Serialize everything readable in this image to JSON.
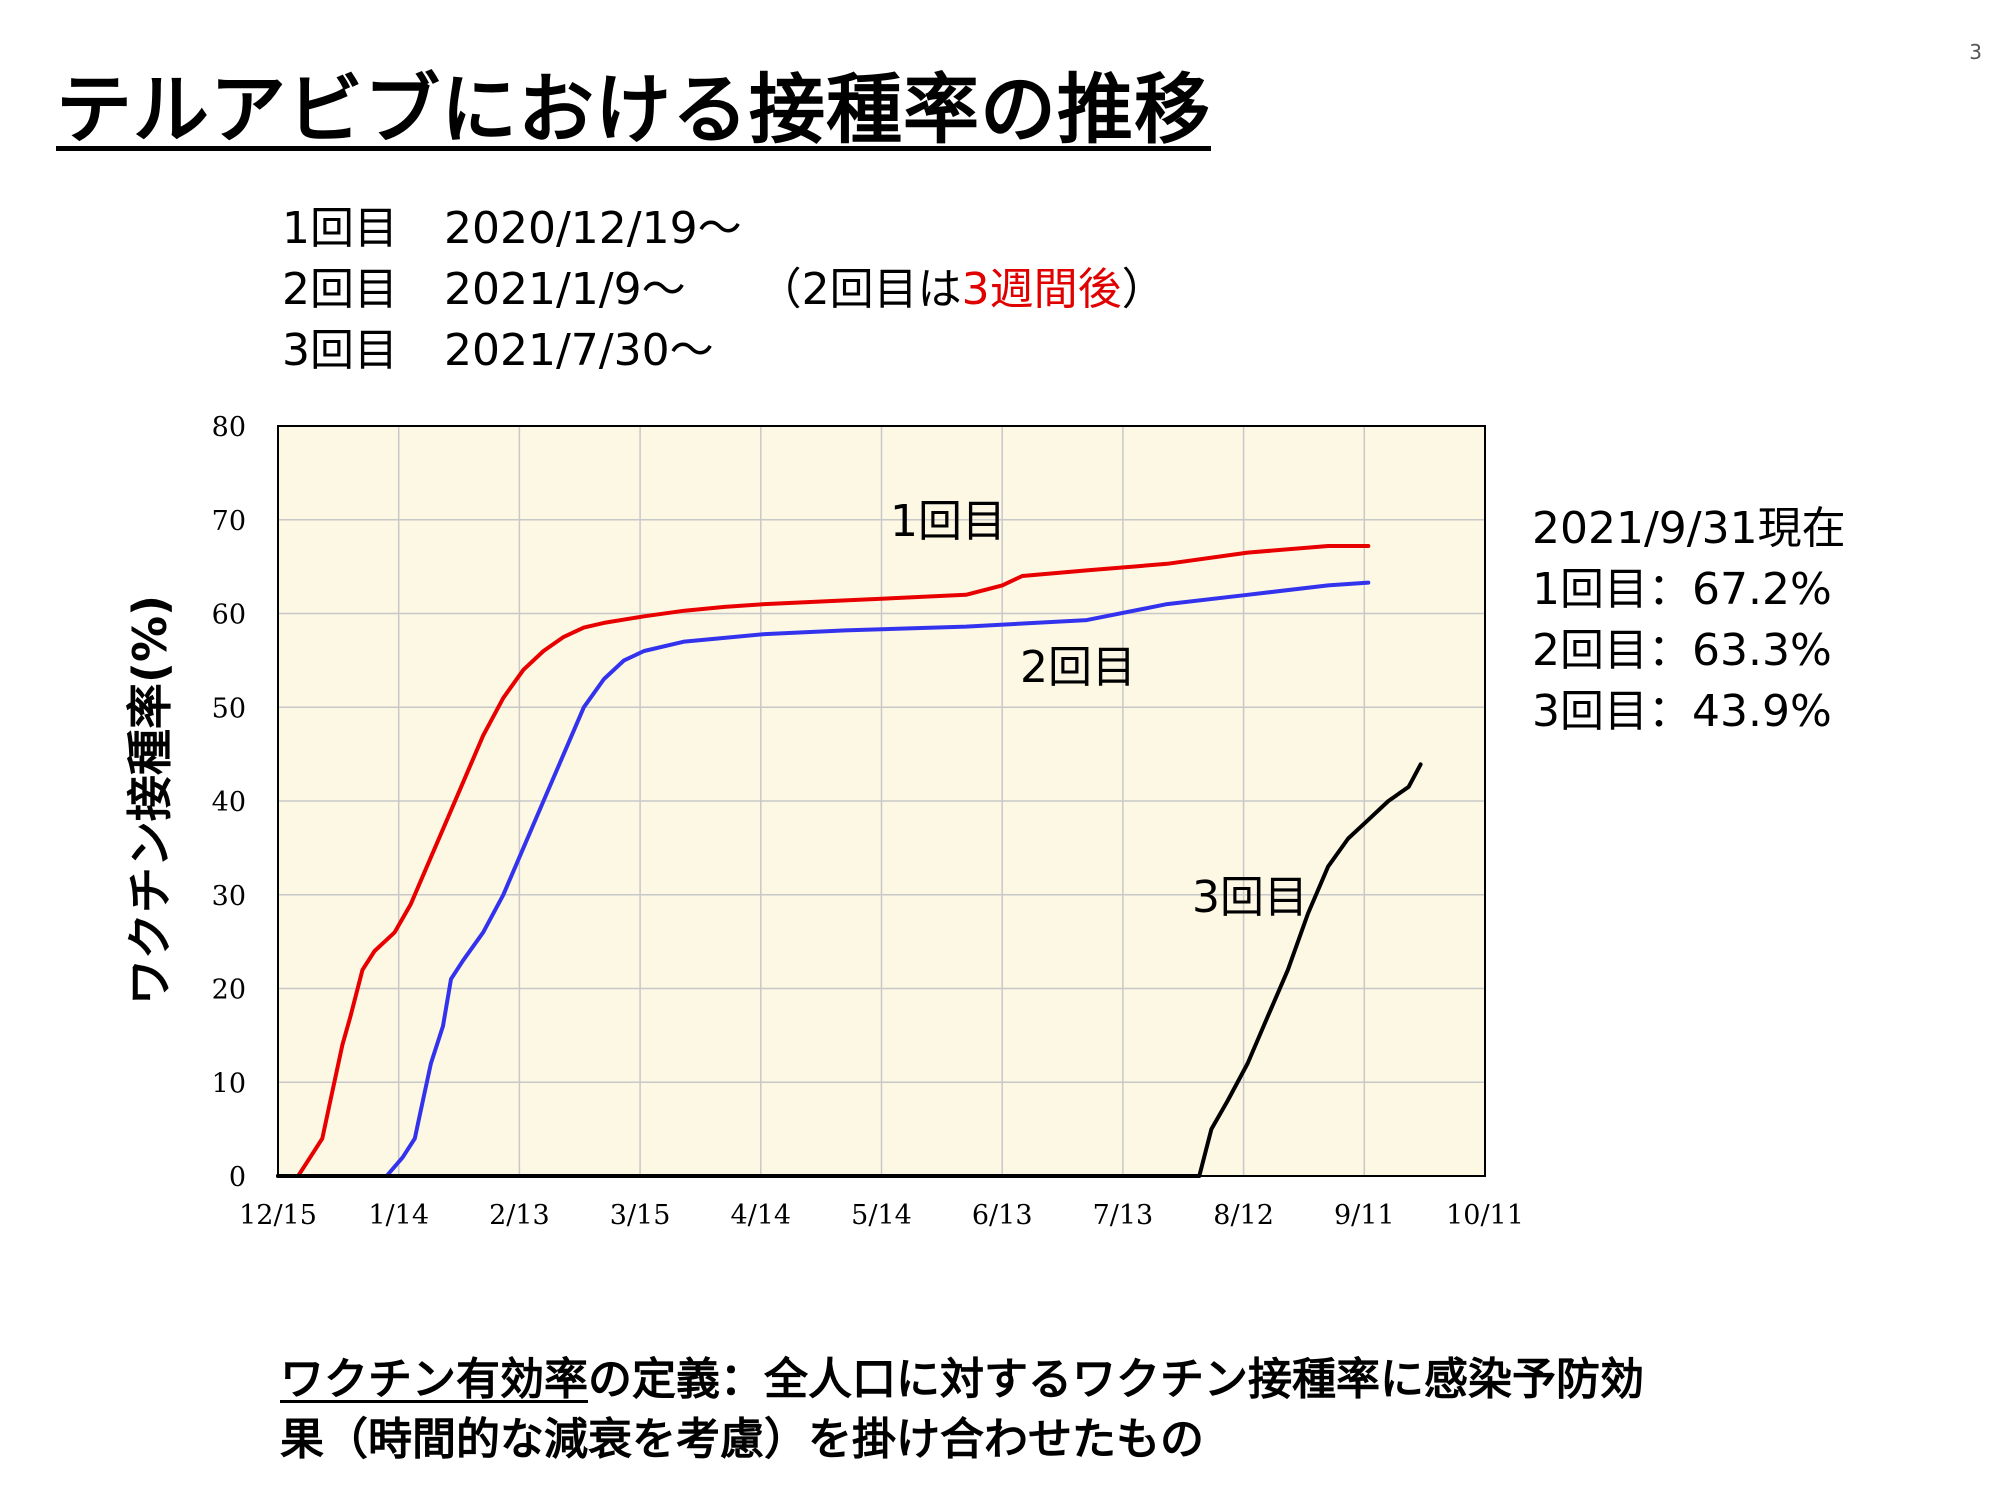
{
  "slide": {
    "number": "3",
    "title": "テルアビブにおける接種率の推移"
  },
  "schedule": [
    {
      "label": "1回目",
      "date": "2020/12/19～"
    },
    {
      "label": "2回目",
      "date": "2021/1/9～"
    },
    {
      "label": "3回目",
      "date": "2021/7/30～"
    }
  ],
  "schedule_note": {
    "prefix": "（2回目は",
    "highlight": "3週間後",
    "suffix": "）",
    "highlight_color": "#e00000"
  },
  "status": {
    "as_of": "2021/9/31現在",
    "lines": [
      "1回目：67.2%",
      "2回目：63.3%",
      "3回目：43.9%"
    ]
  },
  "footer": {
    "term": "ワクチン有効率",
    "line1_rest": "の定義：全人口に対するワクチン接種率に感染予防効",
    "line2": "果（時間的な減衰を考慮）を掛け合わせたもの"
  },
  "chart_data": {
    "type": "line",
    "title": "",
    "xlabel": "",
    "ylabel": "ワクチン接種率(%)",
    "x_start": "12/15",
    "x_tick_labels": [
      "12/15",
      "1/14",
      "2/13",
      "3/15",
      "4/14",
      "5/14",
      "6/13",
      "7/13",
      "8/12",
      "9/11",
      "10/11"
    ],
    "y_ticks": [
      0,
      10,
      20,
      30,
      40,
      50,
      60,
      70,
      80
    ],
    "ylim": [
      0,
      80
    ],
    "grid": true,
    "background": "#fdf8e4",
    "series": [
      {
        "name": "1回目",
        "color": "#e80000",
        "x_unit": "days after 12/15",
        "points": [
          [
            0,
            0
          ],
          [
            5,
            0
          ],
          [
            8,
            2
          ],
          [
            11,
            4
          ],
          [
            13,
            8
          ],
          [
            16,
            14
          ],
          [
            18,
            17
          ],
          [
            21,
            22
          ],
          [
            24,
            24
          ],
          [
            29,
            26
          ],
          [
            33,
            29
          ],
          [
            37,
            33
          ],
          [
            42,
            38
          ],
          [
            46,
            42
          ],
          [
            51,
            47
          ],
          [
            56,
            51
          ],
          [
            61,
            54
          ],
          [
            66,
            56
          ],
          [
            71,
            57.5
          ],
          [
            76,
            58.5
          ],
          [
            81,
            59
          ],
          [
            91,
            59.7
          ],
          [
            101,
            60.3
          ],
          [
            111,
            60.7
          ],
          [
            121,
            61
          ],
          [
            141,
            61.4
          ],
          [
            171,
            62
          ],
          [
            180,
            63
          ],
          [
            185,
            64
          ],
          [
            201,
            64.6
          ],
          [
            221,
            65.3
          ],
          [
            241,
            66.5
          ],
          [
            261,
            67.2
          ],
          [
            271,
            67.2
          ]
        ]
      },
      {
        "name": "2回目",
        "color": "#3333ee",
        "x_unit": "days after 12/15",
        "points": [
          [
            0,
            0
          ],
          [
            27,
            0
          ],
          [
            31,
            2
          ],
          [
            34,
            4
          ],
          [
            36,
            8
          ],
          [
            38,
            12
          ],
          [
            41,
            16
          ],
          [
            43,
            21
          ],
          [
            46,
            23
          ],
          [
            51,
            26
          ],
          [
            56,
            30
          ],
          [
            61,
            35
          ],
          [
            66,
            40
          ],
          [
            71,
            45
          ],
          [
            76,
            50
          ],
          [
            81,
            53
          ],
          [
            86,
            55
          ],
          [
            91,
            56
          ],
          [
            101,
            57
          ],
          [
            121,
            57.8
          ],
          [
            141,
            58.2
          ],
          [
            171,
            58.6
          ],
          [
            201,
            59.3
          ],
          [
            221,
            61
          ],
          [
            241,
            62
          ],
          [
            261,
            63
          ],
          [
            271,
            63.3
          ]
        ]
      },
      {
        "name": "3回目",
        "color": "#000000",
        "x_unit": "days after 12/15",
        "points": [
          [
            0,
            0
          ],
          [
            229,
            0
          ],
          [
            232,
            5
          ],
          [
            236,
            8
          ],
          [
            241,
            12
          ],
          [
            246,
            17
          ],
          [
            251,
            22
          ],
          [
            256,
            28
          ],
          [
            261,
            33
          ],
          [
            266,
            36
          ],
          [
            271,
            38
          ],
          [
            276,
            40
          ],
          [
            281,
            41.5
          ],
          [
            284,
            43.9
          ]
        ]
      }
    ]
  }
}
